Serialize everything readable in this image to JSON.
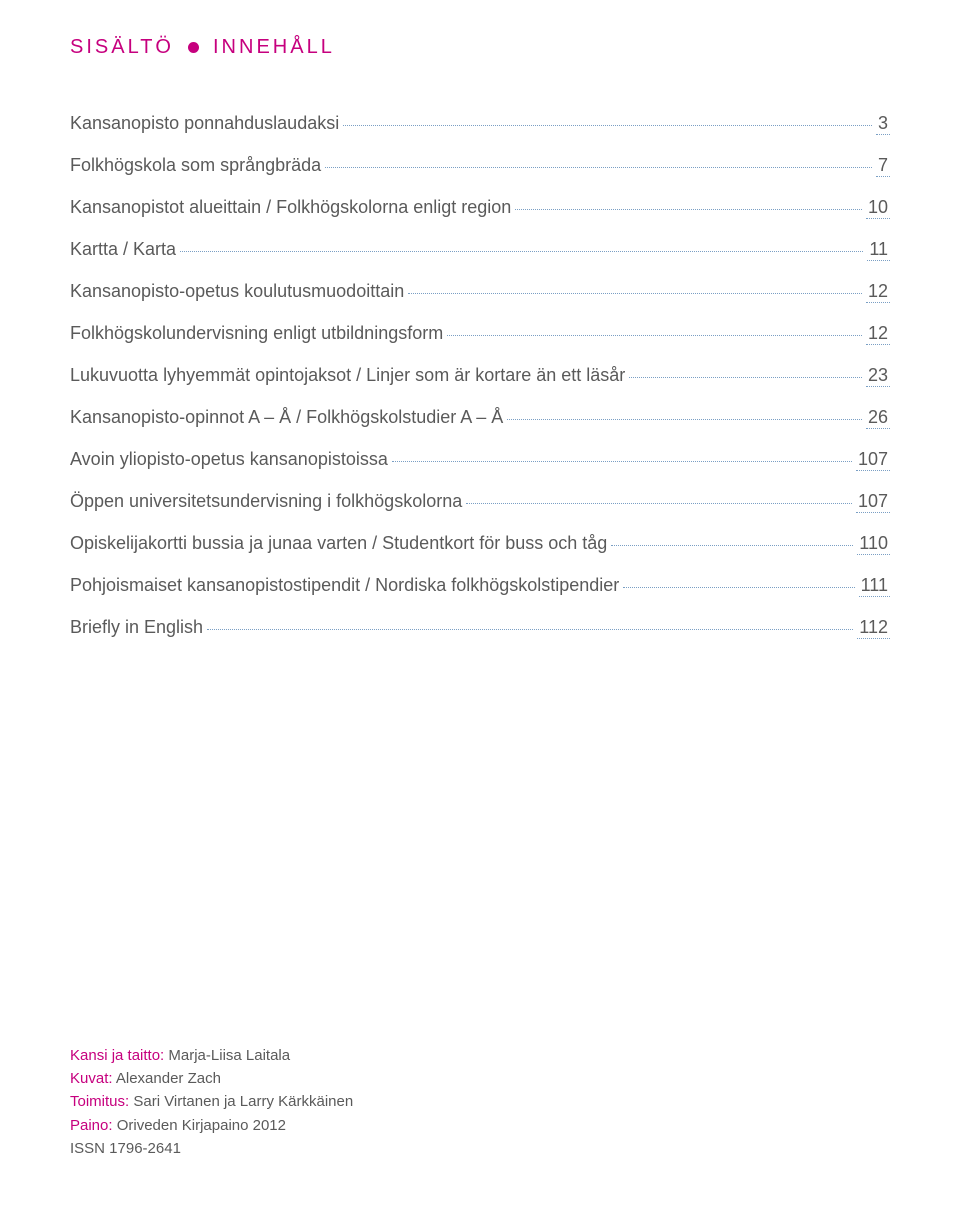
{
  "header": {
    "left": "SISÄLTÖ",
    "right": "INNEHÅLL"
  },
  "toc": [
    {
      "label": "Kansanopisto ponnahduslaudaksi",
      "page": "3"
    },
    {
      "label": "Folkhögskola som språngbräda",
      "page": "7"
    },
    {
      "label": "Kansanopistot alueittain / Folkhögskolorna enligt region",
      "page": "10"
    },
    {
      "label": "Kartta / Karta",
      "page": "11"
    },
    {
      "label": "Kansanopisto-opetus koulutusmuodoittain",
      "page": "12"
    },
    {
      "label": "Folkhögskolundervisning enligt utbildningsform",
      "page": "12"
    },
    {
      "label": "Lukuvuotta lyhyemmät opintojaksot / Linjer som är kortare än ett läsår",
      "page": "23"
    },
    {
      "label": "Kansanopisto-opinnot A – Å / Folkhögskolstudier A – Å",
      "page": "26"
    },
    {
      "label": "Avoin yliopisto-opetus kansanopistoissa",
      "page": "107"
    },
    {
      "label": "Öppen universitetsundervisning i folkhögskolorna",
      "page": "107"
    },
    {
      "label": "Opiskelijakortti bussia ja junaa varten / Studentkort för buss och tåg",
      "page": "110"
    },
    {
      "label": "Pohjoismaiset kansanopistostipendit / Nordiska folkhögskolstipendier",
      "page": "111"
    },
    {
      "label": "Briefly in English",
      "page": "112"
    }
  ],
  "credits": {
    "lines": [
      {
        "label": "Kansi ja taitto:",
        "value": " Marja-Liisa Laitala"
      },
      {
        "label": "Kuvat:",
        "value": " Alexander Zach"
      },
      {
        "label": "Toimitus:",
        "value": " Sari Virtanen ja Larry Kärkkäinen"
      },
      {
        "label": "Paino:",
        "value": " Oriveden Kirjapaino 2012"
      },
      {
        "label": "",
        "value": "ISSN 1796-2641"
      }
    ]
  },
  "colors": {
    "accent": "#c6007e",
    "text": "#5a5a5a",
    "leader": "#7a9fc4",
    "background": "#ffffff"
  }
}
